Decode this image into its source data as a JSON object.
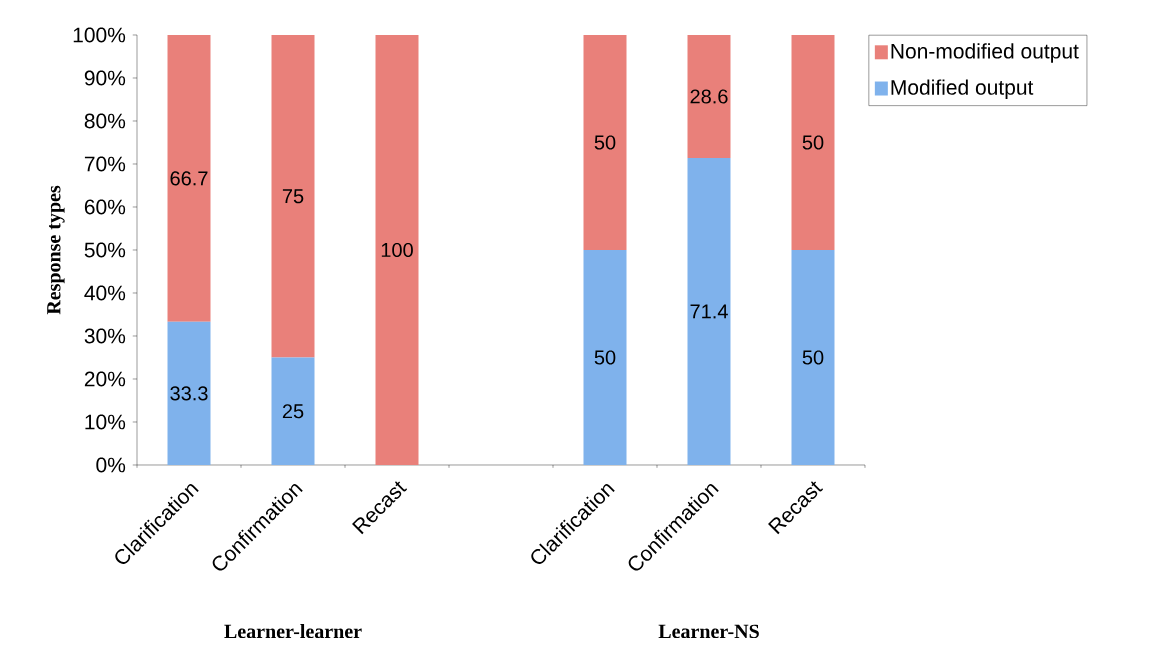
{
  "chart_data": {
    "type": "bar",
    "stacked": true,
    "ylabel": "Response types",
    "categories": [
      "Clarification",
      "Confirmation",
      "Recast",
      null,
      "Clarification",
      "Confirmation",
      "Recast"
    ],
    "series": [
      {
        "name": "Modified output",
        "color": "#7fb2ec",
        "values": [
          33.3,
          25,
          0,
          null,
          50,
          71.4,
          50
        ],
        "value_labels": [
          "33.3",
          "25",
          null,
          null,
          "50",
          "71.4",
          "50"
        ]
      },
      {
        "name": "Non-modified output",
        "color": "#e9807a",
        "values": [
          66.7,
          75,
          100,
          null,
          50,
          28.6,
          50
        ],
        "value_labels": [
          "66.7",
          "75",
          "100",
          null,
          "50",
          "28.6",
          "50"
        ]
      }
    ],
    "ylim": [
      0,
      100
    ],
    "yticks": [
      {
        "value": 0,
        "label": "0%"
      },
      {
        "value": 10,
        "label": "10%"
      },
      {
        "value": 20,
        "label": "20%"
      },
      {
        "value": 30,
        "label": "30%"
      },
      {
        "value": 40,
        "label": "40%"
      },
      {
        "value": 50,
        "label": "50%"
      },
      {
        "value": 60,
        "label": "60%"
      },
      {
        "value": 70,
        "label": "70%"
      },
      {
        "value": 80,
        "label": "80%"
      },
      {
        "value": 90,
        "label": "90%"
      },
      {
        "value": 100,
        "label": "100%"
      }
    ],
    "legend": "top right",
    "annotations": [
      "Learner-learner",
      "Learner-NS"
    ]
  }
}
